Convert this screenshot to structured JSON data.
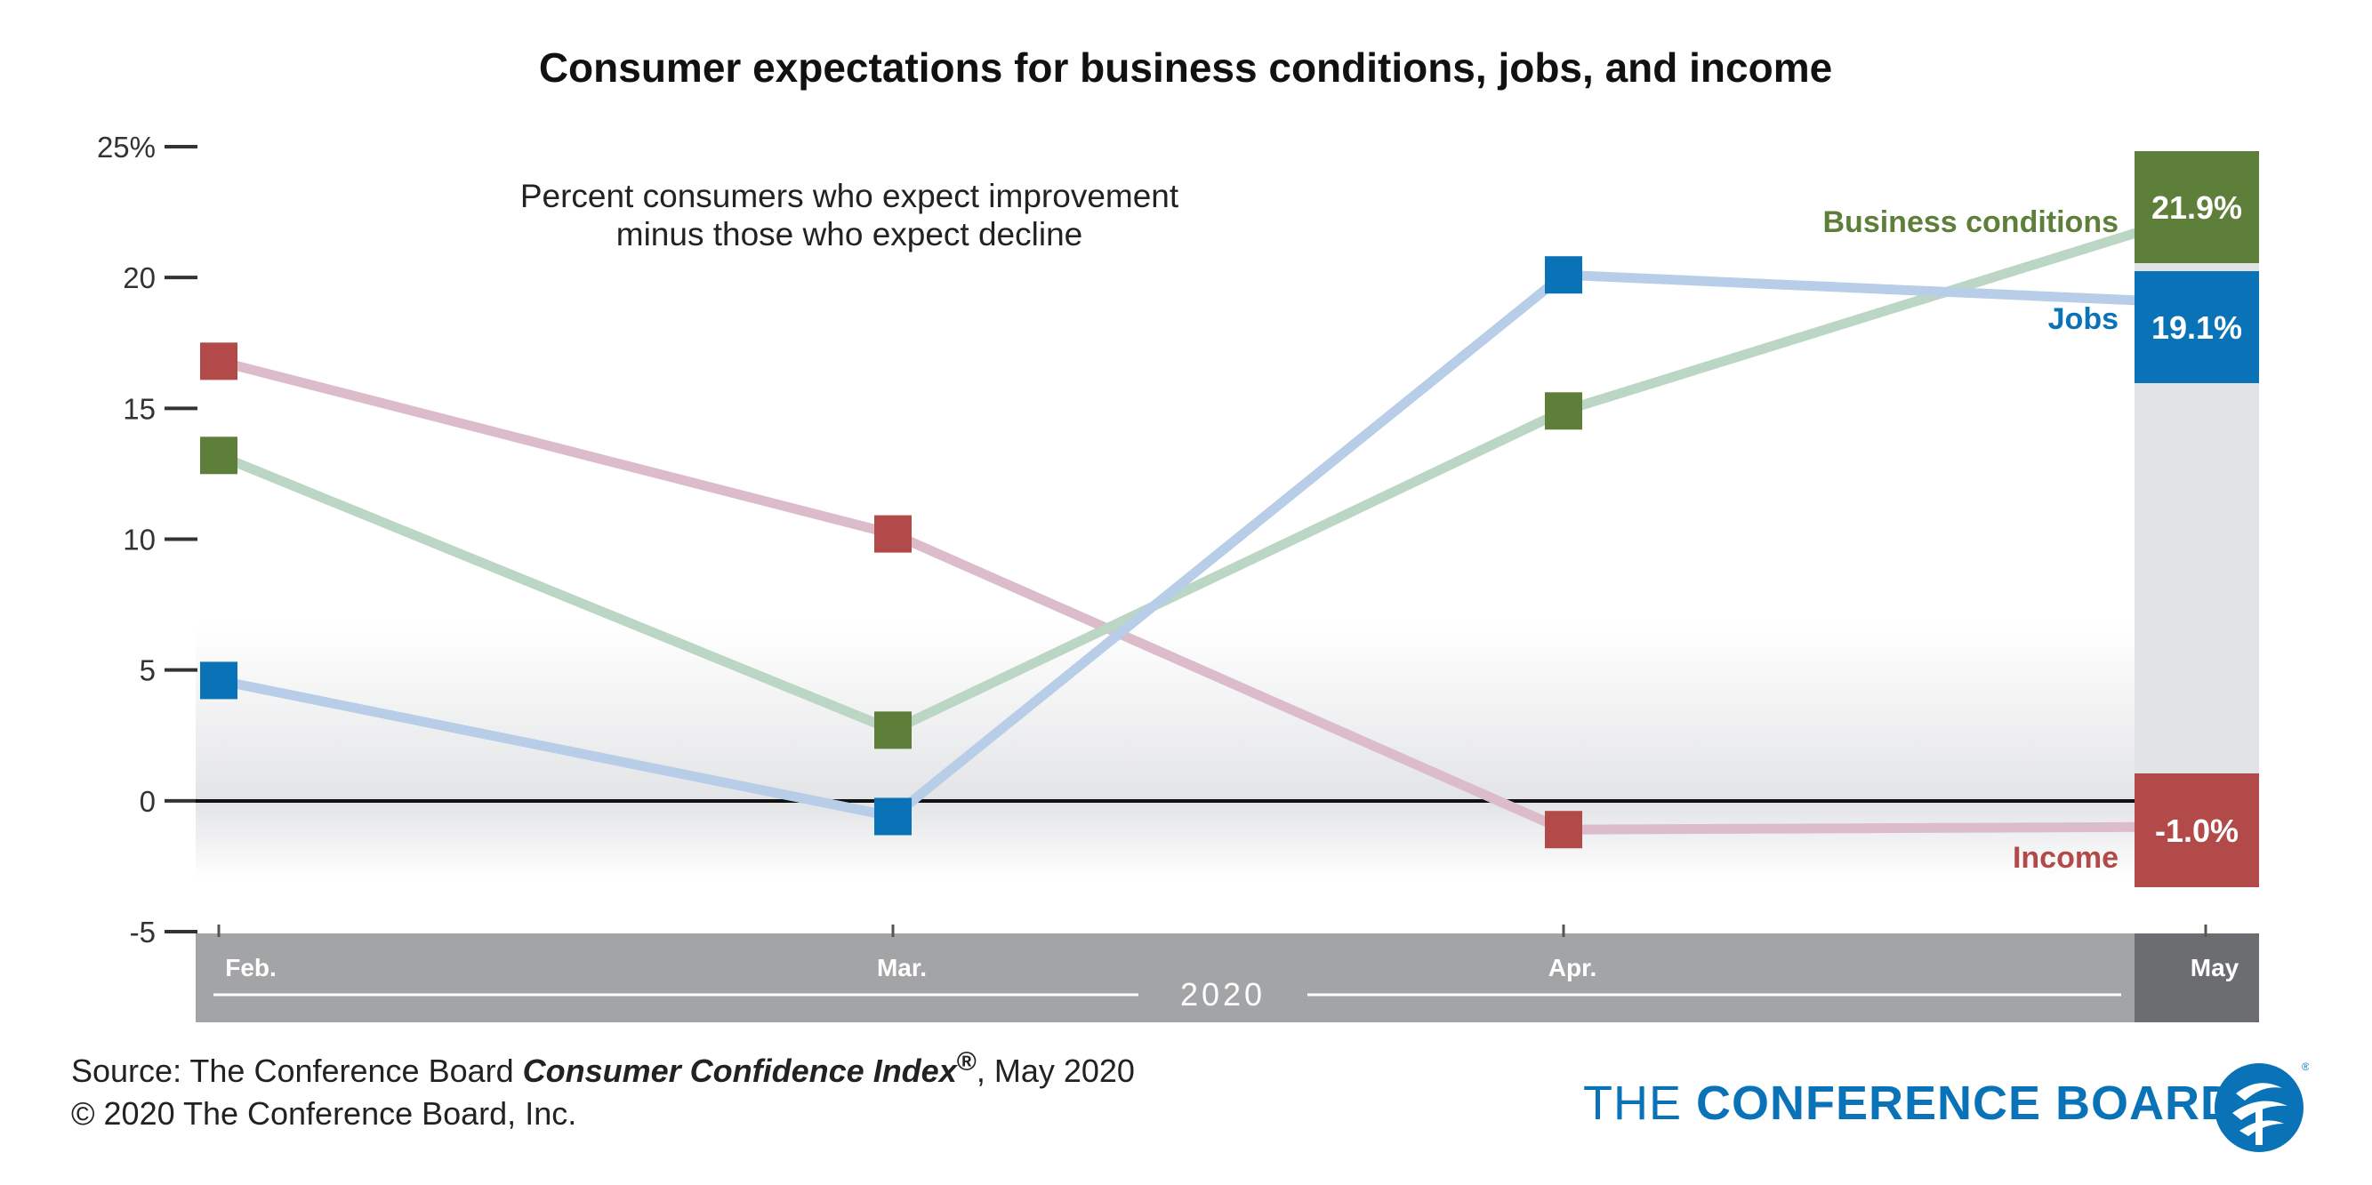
{
  "chart_data": {
    "type": "line",
    "title": "Consumer expectations for business conditions, jobs, and income",
    "subtitle_lines": [
      "Percent consumers who expect improvement",
      "minus those who expect decline"
    ],
    "xlabel": "",
    "ylabel": "",
    "categories": [
      "Feb.",
      "Mar.",
      "Apr.",
      "May"
    ],
    "x_group_label": "2020",
    "ylim": [
      -5,
      25
    ],
    "yticks": [
      25,
      20,
      15,
      10,
      5,
      0,
      -5
    ],
    "ytick_labels": [
      "25%",
      "20",
      "15",
      "10",
      "5",
      "0",
      "-5"
    ],
    "series": [
      {
        "name": "Income",
        "values": [
          16.8,
          10.2,
          -1.1,
          -1.0
        ],
        "value_label": "-1.0%",
        "line_color": "#dcbccb",
        "marker_color": "#b24a4a"
      },
      {
        "name": "Business conditions",
        "values": [
          13.2,
          2.7,
          14.9,
          21.9
        ],
        "value_label": "21.9%",
        "line_color": "#bcd6c5",
        "marker_color": "#5e7f3a"
      },
      {
        "name": "Jobs",
        "values": [
          4.6,
          -0.6,
          20.1,
          19.1
        ],
        "value_label": "19.1%",
        "line_color": "#b8cde8",
        "marker_color": "#0a73b8"
      }
    ]
  },
  "source": {
    "prefix": "Source:  The Conference Board ",
    "index_name": "Consumer Confidence Index",
    "registered": "®",
    "suffix": ", May 2020",
    "copyright": "© 2020 The Conference Board, Inc."
  },
  "logo": {
    "part1": "THE ",
    "part2": "CONFERENCE BOARD",
    "registered": "®"
  }
}
